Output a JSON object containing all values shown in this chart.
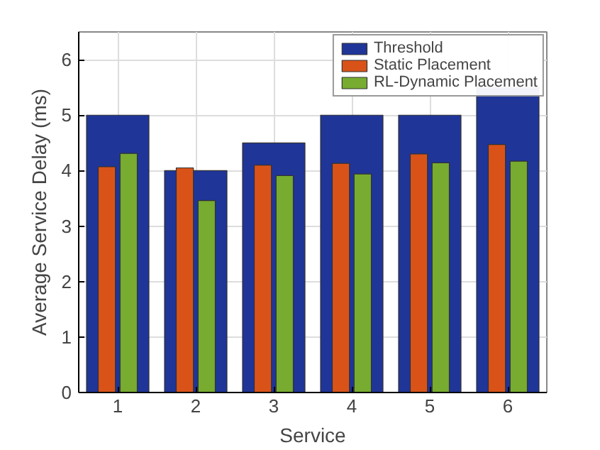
{
  "chart_data": {
    "type": "bar",
    "xlabel": "Service",
    "ylabel": "Average Service Delay (ms)",
    "categories": [
      "1",
      "2",
      "3",
      "4",
      "5",
      "6"
    ],
    "series": [
      {
        "name": "Threshold",
        "color": "#1f3598",
        "values": [
          5,
          4,
          4.5,
          5,
          5,
          5.5
        ]
      },
      {
        "name": "Static Placement",
        "color": "#d95319",
        "values": [
          4.07,
          4.05,
          4.1,
          4.13,
          4.3,
          4.47
        ]
      },
      {
        "name": "RL-Dynamic Placement",
        "color": "#77ac30",
        "values": [
          4.31,
          3.46,
          3.91,
          3.94,
          4.14,
          4.17
        ]
      }
    ],
    "ylim": [
      0,
      6.5
    ],
    "yticks": [
      0,
      1,
      2,
      3,
      4,
      5,
      6
    ],
    "grid": true,
    "legend": "top right"
  }
}
